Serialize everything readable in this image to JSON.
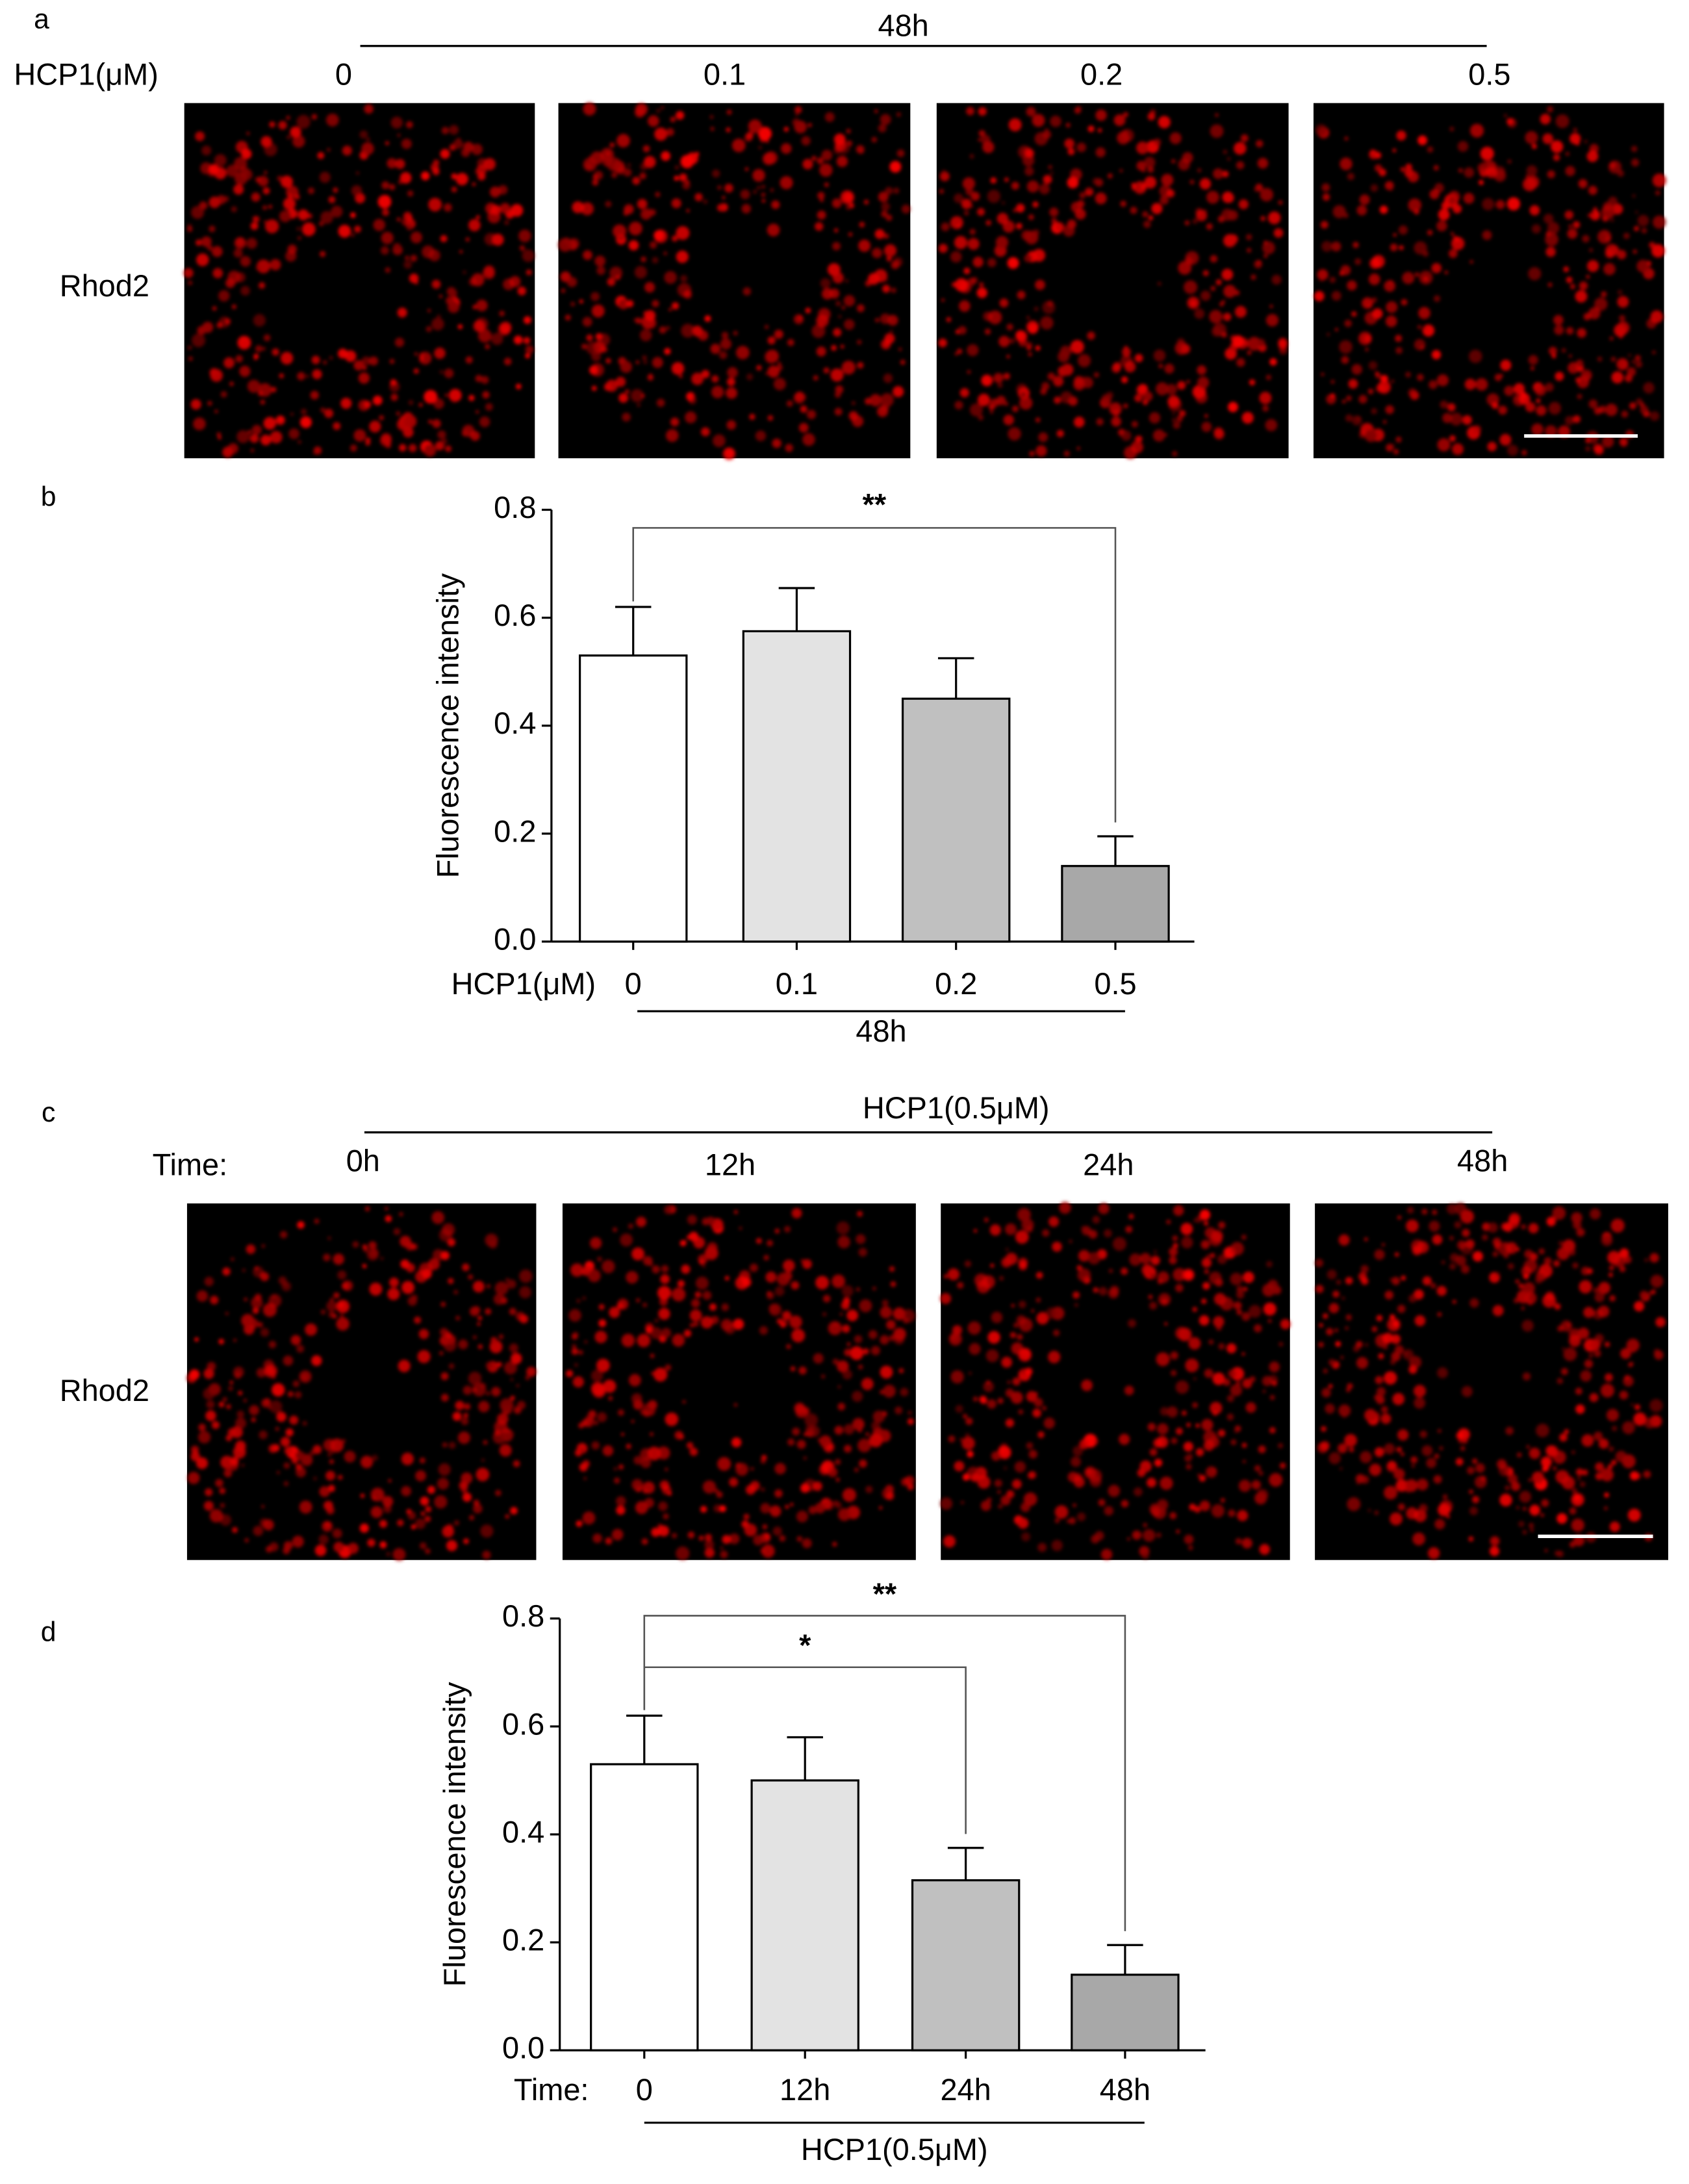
{
  "panel_a": {
    "label": "a",
    "header": "48h",
    "row_title": "HCP1(μM)",
    "conditions": [
      "0",
      "0.1",
      "0.2",
      "0.5"
    ],
    "stain": "Rhod2"
  },
  "panel_c": {
    "label": "c",
    "header": "HCP1(0.5μM)",
    "row_title": "Time:",
    "conditions": [
      "0h",
      "12h",
      "24h",
      "48h"
    ],
    "stain": "Rhod2"
  },
  "chart_data": [
    {
      "type": "bar",
      "label": "b",
      "ylabel": "Fluorescence intensity",
      "x_title": "HCP1(μM)",
      "group_label": "48h",
      "categories": [
        "0",
        "0.1",
        "0.2",
        "0.5"
      ],
      "values": [
        0.53,
        0.575,
        0.45,
        0.14
      ],
      "errors": [
        0.09,
        0.08,
        0.075,
        0.055
      ],
      "colors": [
        "#ffffff",
        "#e3e3e3",
        "#c0c0c0",
        "#a8a8a8"
      ],
      "ylim": [
        0,
        0.8
      ],
      "yticks": [
        {
          "value": 0,
          "label": "0.0"
        },
        0.2,
        0.4,
        0.6,
        0.8
      ],
      "significance": [
        {
          "label": "**",
          "between": [
            "0",
            "0.5"
          ]
        }
      ]
    },
    {
      "type": "bar",
      "label": "d",
      "ylabel": "Fluorescence intensity",
      "x_title": "Time:",
      "group_label": "HCP1(0.5μM)",
      "categories": [
        "0",
        "12h",
        "24h",
        "48h"
      ],
      "values": [
        0.53,
        0.5,
        0.315,
        0.14
      ],
      "errors": [
        0.09,
        0.08,
        0.06,
        0.055
      ],
      "colors": [
        "#ffffff",
        "#e3e3e3",
        "#c0c0c0",
        "#a8a8a8"
      ],
      "ylim": [
        0,
        0.8
      ],
      "yticks": [
        {
          "value": 0,
          "label": "0.0"
        },
        0.2,
        0.4,
        0.6,
        0.8
      ],
      "significance": [
        {
          "label": "*",
          "between": [
            "0",
            "24h"
          ]
        },
        {
          "label": "**",
          "between": [
            "0",
            "48h"
          ]
        }
      ]
    }
  ]
}
